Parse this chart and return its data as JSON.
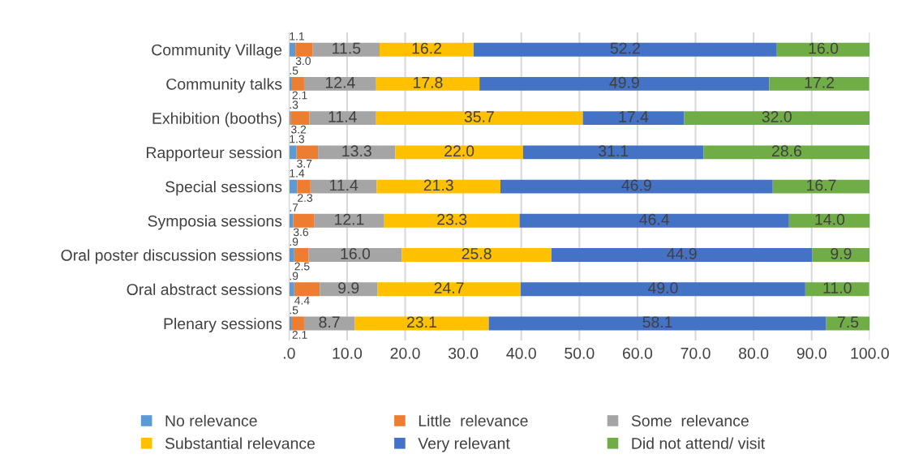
{
  "chart_data": {
    "type": "bar",
    "orientation": "horizontal",
    "stacked": true,
    "grid": "x",
    "legend": "bottom",
    "categories": [
      "Community Village",
      "Community talks",
      "Exhibition (booths)",
      "Rapporteur session",
      "Special sessions",
      "Symposia sessions",
      "Oral poster discussion sessions",
      "Oral abstract sessions",
      "Plenary sessions"
    ],
    "xlim": [
      0,
      100
    ],
    "xticks": [
      {
        "value": 0,
        "label": ".0"
      },
      {
        "value": 10,
        "label": "10.0"
      },
      {
        "value": 20,
        "label": "20.0"
      },
      {
        "value": 30,
        "label": "30.0"
      },
      {
        "value": 40,
        "label": "40.0"
      },
      {
        "value": 50,
        "label": "50.0"
      },
      {
        "value": 60,
        "label": "60.0"
      },
      {
        "value": 70,
        "label": "70.0"
      },
      {
        "value": 80,
        "label": "80.0"
      },
      {
        "value": 90,
        "label": "90.0"
      },
      {
        "value": 100,
        "label": "100.0"
      }
    ],
    "series": [
      {
        "name": "No relevance",
        "color": "#5b9bd5",
        "values": [
          1.1,
          0.5,
          0.3,
          1.3,
          1.4,
          0.7,
          0.9,
          0.9,
          0.5
        ],
        "value_labels": [
          "1.1",
          ".5",
          ".3",
          "1.3",
          "1.4",
          ".7",
          ".9",
          ".9",
          ".5"
        ]
      },
      {
        "name": "Little  relevance",
        "color": "#ed7d31",
        "values": [
          3.0,
          2.1,
          3.2,
          3.7,
          2.3,
          3.6,
          2.5,
          4.4,
          2.1
        ],
        "value_labels": [
          "3.0",
          "2.1",
          "3.2",
          "3.7",
          "2.3",
          "3.6",
          "2.5",
          "4.4",
          "2.1"
        ]
      },
      {
        "name": "Some  relevance",
        "color": "#a5a5a5",
        "values": [
          11.5,
          12.4,
          11.4,
          13.3,
          11.4,
          12.1,
          16.0,
          9.9,
          8.7
        ],
        "value_labels": [
          "11.5",
          "12.4",
          "11.4",
          "13.3",
          "11.4",
          "12.1",
          "16.0",
          "9.9",
          "8.7"
        ]
      },
      {
        "name": "Substantial relevance",
        "color": "#ffc000",
        "values": [
          16.2,
          17.8,
          35.7,
          22.0,
          21.3,
          23.3,
          25.8,
          24.7,
          23.1
        ],
        "value_labels": [
          "16.2",
          "17.8",
          "35.7",
          "22.0",
          "21.3",
          "23.3",
          "25.8",
          "24.7",
          "23.1"
        ]
      },
      {
        "name": "Very relevant",
        "color": "#4472c4",
        "values": [
          52.2,
          49.9,
          17.4,
          31.1,
          46.9,
          46.4,
          44.9,
          49.0,
          58.1
        ],
        "value_labels": [
          "52.2",
          "49.9",
          "17.4",
          "31.1",
          "46.9",
          "46.4",
          "44.9",
          "49.0",
          "58.1"
        ]
      },
      {
        "name": "Did not attend/ visit",
        "color": "#70ad47",
        "values": [
          16.0,
          17.2,
          32.0,
          28.6,
          16.7,
          14.0,
          9.9,
          11.0,
          7.5
        ],
        "value_labels": [
          "16.0",
          "17.2",
          "32.0",
          "28.6",
          "16.7",
          "14.0",
          "9.9",
          "11.0",
          "7.5"
        ]
      }
    ]
  }
}
